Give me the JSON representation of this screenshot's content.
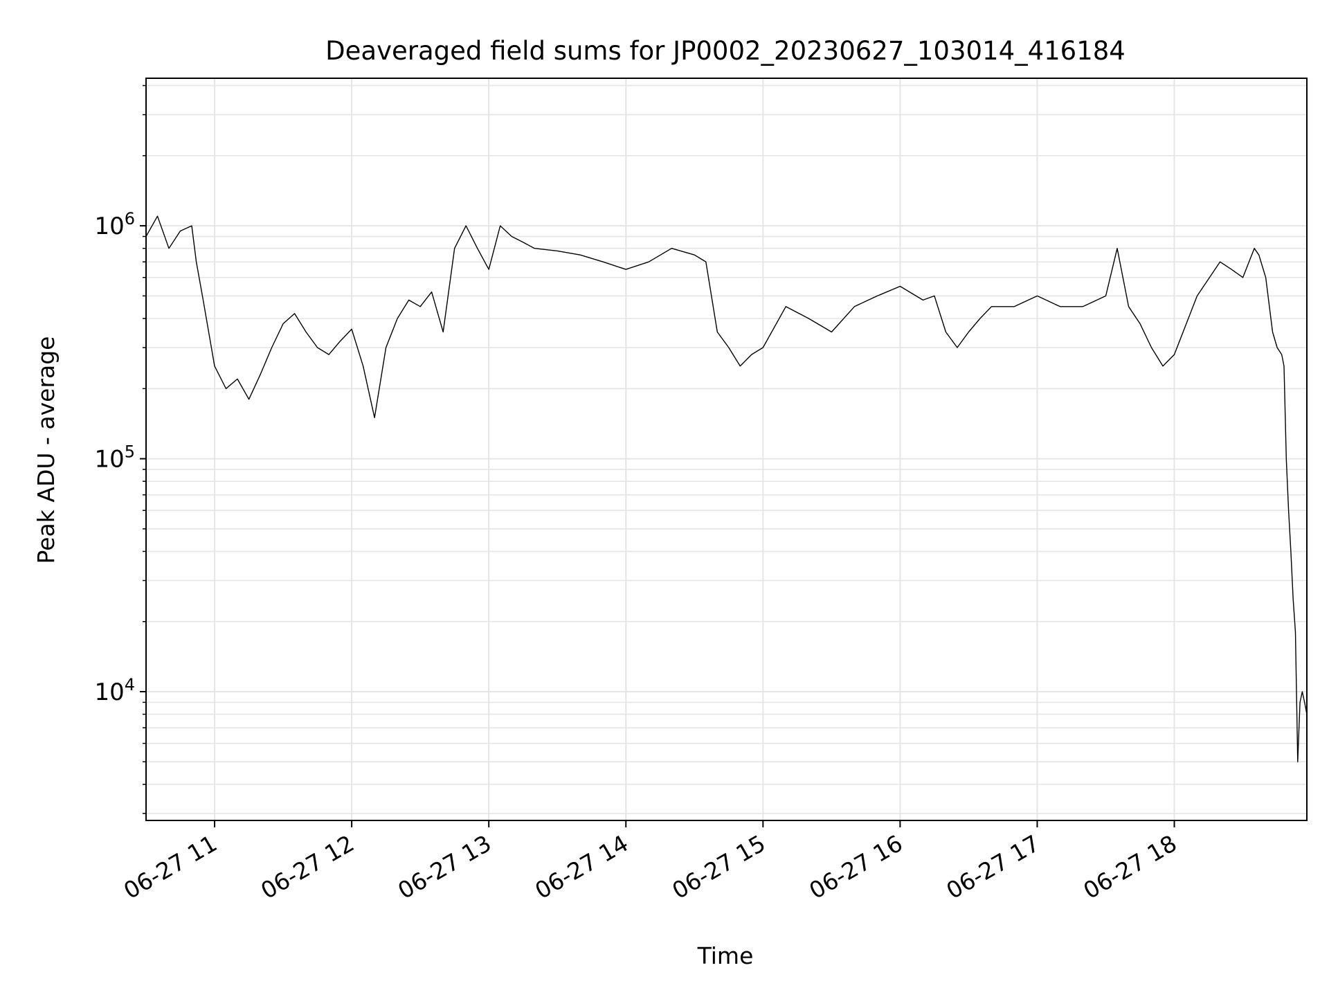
{
  "chart_data": {
    "type": "line",
    "title": "Deaveraged field sums for JP0002_20230627_103014_416184",
    "xlabel": "Time",
    "ylabel": "Peak ADU - average",
    "yscale": "log",
    "grid": true,
    "legend": "none",
    "line_color": "#000000",
    "grid_color": "#e5e5e5",
    "xlim": [
      "2023-06-27 10:30",
      "2023-06-27 18:58"
    ],
    "ylim": [
      2800,
      4300000
    ],
    "x_ticks": [
      {
        "t": "2023-06-27 11:00",
        "label": "06-27 11"
      },
      {
        "t": "2023-06-27 12:00",
        "label": "06-27 12"
      },
      {
        "t": "2023-06-27 13:00",
        "label": "06-27 13"
      },
      {
        "t": "2023-06-27 14:00",
        "label": "06-27 14"
      },
      {
        "t": "2023-06-27 15:00",
        "label": "06-27 15"
      },
      {
        "t": "2023-06-27 16:00",
        "label": "06-27 16"
      },
      {
        "t": "2023-06-27 17:00",
        "label": "06-27 17"
      },
      {
        "t": "2023-06-27 18:00",
        "label": "06-27 18"
      }
    ],
    "y_ticks": [
      {
        "value": 10000,
        "base": "10",
        "exp": "4"
      },
      {
        "value": 100000,
        "base": "10",
        "exp": "5"
      },
      {
        "value": 1000000,
        "base": "10",
        "exp": "6"
      }
    ],
    "series": [
      {
        "x": [
          "2023-06-27 10:30",
          "2023-06-27 10:35",
          "2023-06-27 10:40",
          "2023-06-27 10:45",
          "2023-06-27 10:50",
          "2023-06-27 10:52",
          "2023-06-27 10:55",
          "2023-06-27 11:00",
          "2023-06-27 11:05",
          "2023-06-27 11:10",
          "2023-06-27 11:15",
          "2023-06-27 11:20",
          "2023-06-27 11:25",
          "2023-06-27 11:30",
          "2023-06-27 11:35",
          "2023-06-27 11:40",
          "2023-06-27 11:45",
          "2023-06-27 11:50",
          "2023-06-27 11:55",
          "2023-06-27 12:00",
          "2023-06-27 12:05",
          "2023-06-27 12:10",
          "2023-06-27 12:15",
          "2023-06-27 12:20",
          "2023-06-27 12:25",
          "2023-06-27 12:30",
          "2023-06-27 12:35",
          "2023-06-27 12:40",
          "2023-06-27 12:45",
          "2023-06-27 12:50",
          "2023-06-27 12:55",
          "2023-06-27 13:00",
          "2023-06-27 13:05",
          "2023-06-27 13:10",
          "2023-06-27 13:15",
          "2023-06-27 13:20",
          "2023-06-27 13:30",
          "2023-06-27 13:40",
          "2023-06-27 13:50",
          "2023-06-27 14:00",
          "2023-06-27 14:10",
          "2023-06-27 14:20",
          "2023-06-27 14:30",
          "2023-06-27 14:35",
          "2023-06-27 14:40",
          "2023-06-27 14:45",
          "2023-06-27 14:50",
          "2023-06-27 14:55",
          "2023-06-27 15:00",
          "2023-06-27 15:10",
          "2023-06-27 15:20",
          "2023-06-27 15:30",
          "2023-06-27 15:40",
          "2023-06-27 15:50",
          "2023-06-27 16:00",
          "2023-06-27 16:10",
          "2023-06-27 16:15",
          "2023-06-27 16:20",
          "2023-06-27 16:25",
          "2023-06-27 16:30",
          "2023-06-27 16:35",
          "2023-06-27 16:40",
          "2023-06-27 16:50",
          "2023-06-27 17:00",
          "2023-06-27 17:10",
          "2023-06-27 17:20",
          "2023-06-27 17:30",
          "2023-06-27 17:35",
          "2023-06-27 17:40",
          "2023-06-27 17:45",
          "2023-06-27 17:50",
          "2023-06-27 17:55",
          "2023-06-27 18:00",
          "2023-06-27 18:10",
          "2023-06-27 18:20",
          "2023-06-27 18:25",
          "2023-06-27 18:30",
          "2023-06-27 18:35",
          "2023-06-27 18:37",
          "2023-06-27 18:40",
          "2023-06-27 18:43",
          "2023-06-27 18:45",
          "2023-06-27 18:47",
          "2023-06-27 18:48",
          "2023-06-27 18:49",
          "2023-06-27 18:50",
          "2023-06-27 18:51",
          "2023-06-27 18:52",
          "2023-06-27 18:53",
          "2023-06-27 18:54",
          "2023-06-27 18:55",
          "2023-06-27 18:56",
          "2023-06-27 18:57",
          "2023-06-27 18:58"
        ],
        "y": [
          900000,
          1100000,
          800000,
          950000,
          1000000,
          700000,
          480000,
          250000,
          200000,
          220000,
          180000,
          230000,
          300000,
          380000,
          420000,
          350000,
          300000,
          280000,
          320000,
          360000,
          250000,
          150000,
          300000,
          400000,
          480000,
          450000,
          520000,
          350000,
          800000,
          1000000,
          800000,
          650000,
          1000000,
          900000,
          850000,
          800000,
          780000,
          750000,
          700000,
          650000,
          700000,
          800000,
          750000,
          700000,
          350000,
          300000,
          250000,
          280000,
          300000,
          450000,
          400000,
          350000,
          450000,
          500000,
          550000,
          480000,
          500000,
          350000,
          300000,
          350000,
          400000,
          450000,
          450000,
          500000,
          450000,
          450000,
          500000,
          800000,
          450000,
          380000,
          300000,
          250000,
          280000,
          500000,
          700000,
          650000,
          600000,
          800000,
          750000,
          600000,
          350000,
          300000,
          280000,
          250000,
          100000,
          60000,
          40000,
          25000,
          18000,
          5000,
          9000,
          10000,
          9000,
          8000
        ]
      }
    ]
  }
}
